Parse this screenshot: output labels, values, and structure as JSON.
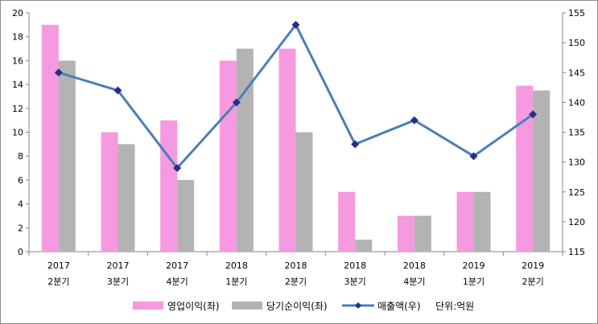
{
  "chart_data": {
    "type": "bar",
    "categories": [
      {
        "year": "2017",
        "quarter": "2분기"
      },
      {
        "year": "2017",
        "quarter": "3분기"
      },
      {
        "year": "2017",
        "quarter": "4분기"
      },
      {
        "year": "2018",
        "quarter": "1분기"
      },
      {
        "year": "2018",
        "quarter": "2분기"
      },
      {
        "year": "2018",
        "quarter": "3분기"
      },
      {
        "year": "2018",
        "quarter": "4분기"
      },
      {
        "year": "2019",
        "quarter": "1분기"
      },
      {
        "year": "2019",
        "quarter": "2분기"
      }
    ],
    "series": [
      {
        "name": "영업이익(좌)",
        "type": "bar",
        "axis": "left",
        "color": "#f59ae0",
        "values": [
          19,
          10,
          11,
          16,
          17,
          5,
          3,
          5,
          13.9
        ]
      },
      {
        "name": "당기순이익(좌)",
        "type": "bar",
        "axis": "left",
        "color": "#b3b3b3",
        "values": [
          16,
          9,
          6,
          17,
          10,
          1,
          3,
          5,
          13.5
        ]
      },
      {
        "name": "매출액(우)",
        "type": "line",
        "axis": "right",
        "color": "#4a7eb7",
        "marker_color": "#2b2b8c",
        "values": [
          145,
          142,
          129,
          140,
          153,
          133,
          137,
          131,
          138
        ]
      }
    ],
    "ylim_left": [
      0,
      20
    ],
    "yticks_left": [
      0,
      2,
      4,
      6,
      8,
      10,
      12,
      14,
      16,
      18,
      20
    ],
    "ylim_right": [
      115,
      155
    ],
    "yticks_right": [
      115,
      120,
      125,
      130,
      135,
      140,
      145,
      150,
      155
    ],
    "unit_note": "단위:억원",
    "legend_position": "bottom",
    "grid": false
  }
}
